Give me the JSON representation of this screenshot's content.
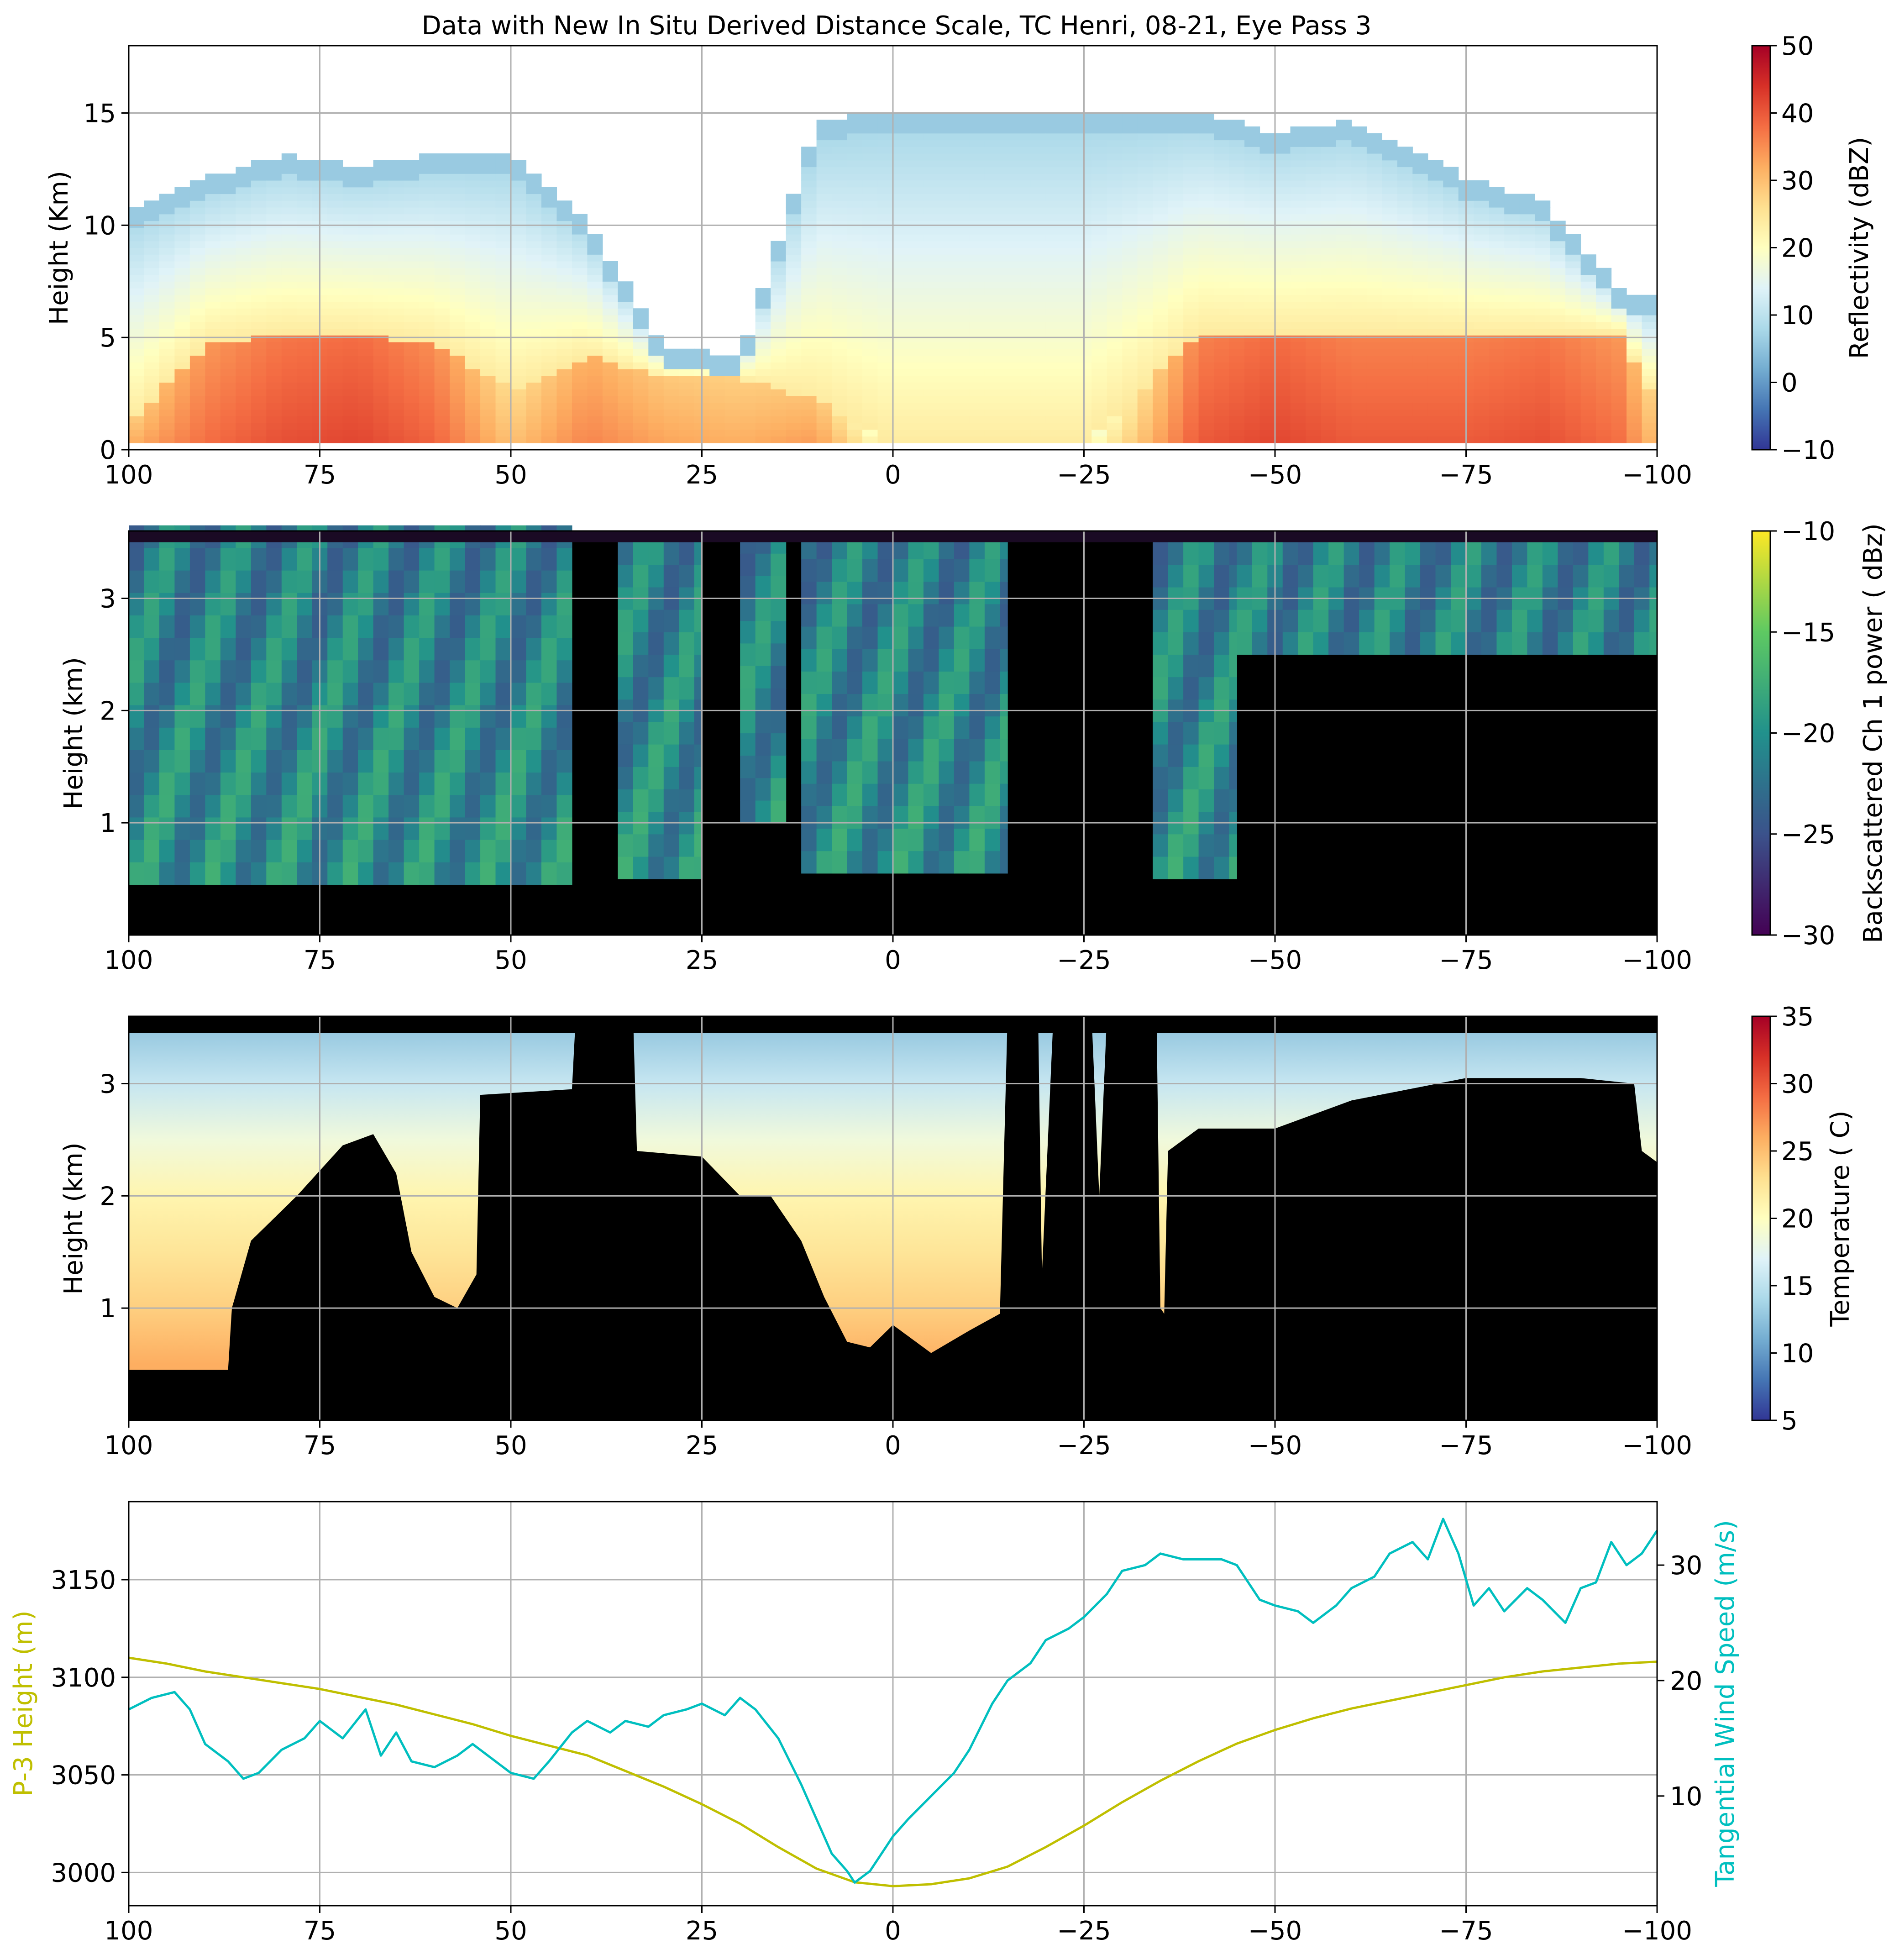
{
  "figure": {
    "title": "Data with New In Situ Derived Distance Scale, TC Henri, 08-21, Eye Pass 3"
  },
  "chart_data": [
    {
      "id": "reflectivity",
      "type": "heatmap",
      "xlim": [
        100,
        -100
      ],
      "xticks": [
        100,
        75,
        50,
        25,
        0,
        -25,
        -50,
        -75,
        -100
      ],
      "xtick_labels": [
        "100",
        "75",
        "50",
        "25",
        "0",
        "−25",
        "−50",
        "−75",
        "−100"
      ],
      "ylim": [
        0,
        18
      ],
      "yticks": [
        0,
        5,
        10,
        15
      ],
      "ytick_labels": [
        "0",
        "5",
        "10",
        "15"
      ],
      "ylabel": "Height (Km)",
      "colorbar": {
        "label": "Reflectivity (dBZ)",
        "range": [
          -10,
          50
        ],
        "ticks": [
          -10,
          0,
          10,
          20,
          30,
          40,
          50
        ],
        "tick_labels": [
          "−10",
          "0",
          "10",
          "20",
          "30",
          "40",
          "50"
        ],
        "colormap": [
          "#313695",
          "#4575b4",
          "#74add1",
          "#abd9e9",
          "#e0f3f8",
          "#ffffbf",
          "#fee090",
          "#fdae61",
          "#f46d43",
          "#d73027",
          "#a50026"
        ]
      },
      "bands": [
        {
          "x": 100,
          "echo_top": 10.5,
          "core_top": 1.0,
          "core_value": 32
        },
        {
          "x": 90,
          "echo_top": 12.0,
          "core_top": 4.5,
          "core_value": 38
        },
        {
          "x": 80,
          "echo_top": 13.0,
          "core_top": 5.0,
          "core_value": 41
        },
        {
          "x": 70,
          "echo_top": 12.5,
          "core_top": 5.0,
          "core_value": 42
        },
        {
          "x": 60,
          "echo_top": 13.0,
          "core_top": 4.5,
          "core_value": 39
        },
        {
          "x": 50,
          "echo_top": 13.0,
          "core_top": 2.5,
          "core_value": 30
        },
        {
          "x": 40,
          "echo_top": 10.0,
          "core_top": 4.0,
          "core_value": 36
        },
        {
          "x": 30,
          "echo_top": 4.5,
          "core_top": 3.0,
          "core_value": 33
        },
        {
          "x": 20,
          "echo_top": 4.0,
          "core_top": 3.0,
          "core_value": 32
        },
        {
          "x": 10,
          "echo_top": 14.5,
          "core_top": 2.0,
          "core_value": 34
        },
        {
          "x": 0,
          "echo_top": 15.0,
          "core_top": 0.0,
          "core_value": 20
        },
        {
          "x": -10,
          "echo_top": 15.0,
          "core_top": 0.0,
          "core_value": 20
        },
        {
          "x": -25,
          "echo_top": 15.0,
          "core_top": 0.0,
          "core_value": 20
        },
        {
          "x": -40,
          "echo_top": 15.0,
          "core_top": 5.0,
          "core_value": 40
        },
        {
          "x": -50,
          "echo_top": 14.0,
          "core_top": 5.0,
          "core_value": 42
        },
        {
          "x": -60,
          "echo_top": 14.5,
          "core_top": 5.0,
          "core_value": 40
        },
        {
          "x": -75,
          "echo_top": 12.0,
          "core_top": 5.0,
          "core_value": 40
        },
        {
          "x": -85,
          "echo_top": 11.0,
          "core_top": 5.0,
          "core_value": 41
        },
        {
          "x": -95,
          "echo_top": 7.0,
          "core_top": 5.0,
          "core_value": 38
        },
        {
          "x": -100,
          "echo_top": 6.5,
          "core_top": 2.0,
          "core_value": 30
        }
      ]
    },
    {
      "id": "backscatter",
      "type": "heatmap",
      "xlim": [
        100,
        -100
      ],
      "xticks": [
        100,
        75,
        50,
        25,
        0,
        -25,
        -50,
        -75,
        -100
      ],
      "xtick_labels": [
        "100",
        "75",
        "50",
        "25",
        "0",
        "−25",
        "−50",
        "−75",
        "−100"
      ],
      "ylim": [
        0,
        3.6
      ],
      "yticks": [
        1,
        2,
        3
      ],
      "ytick_labels": [
        "1",
        "2",
        "3"
      ],
      "ylabel": "Height (km)",
      "colorbar": {
        "label": "Backscattered Ch 1 power ( dBz)",
        "range": [
          -30,
          -10
        ],
        "ticks": [
          -30,
          -25,
          -20,
          -15,
          -10
        ],
        "tick_labels": [
          "−30",
          "−25",
          "−20",
          "−15",
          "−10"
        ],
        "colormap": [
          "#440154",
          "#3b528b",
          "#21918c",
          "#5ec962",
          "#fde725"
        ]
      },
      "surface_height_km": 0.45,
      "clear_columns": [
        {
          "from": 100,
          "to": 42,
          "clear_base": 0.45
        },
        {
          "from": 36,
          "to": 25,
          "clear_base": 0.5
        },
        {
          "from": 20,
          "to": 14,
          "clear_base": 1.0
        },
        {
          "from": 12,
          "to": -15,
          "clear_base": 0.55
        },
        {
          "from": -34,
          "to": -45,
          "clear_base": 0.5
        },
        {
          "from": -45,
          "to": -100,
          "clear_base": 2.5
        }
      ]
    },
    {
      "id": "temperature",
      "type": "heatmap",
      "xlim": [
        100,
        -100
      ],
      "xticks": [
        100,
        75,
        50,
        25,
        0,
        -25,
        -50,
        -75,
        -100
      ],
      "xtick_labels": [
        "100",
        "75",
        "50",
        "25",
        "0",
        "−25",
        "−50",
        "−75",
        "−100"
      ],
      "ylim": [
        0,
        3.6
      ],
      "yticks": [
        1,
        2,
        3
      ],
      "ytick_labels": [
        "1",
        "2",
        "3"
      ],
      "ylabel": "Height (km)",
      "colorbar": {
        "label": "Temperature ( C)",
        "range": [
          5,
          35
        ],
        "ticks": [
          5,
          10,
          15,
          20,
          25,
          30,
          35
        ],
        "tick_labels": [
          "5",
          "10",
          "15",
          "20",
          "25",
          "30",
          "35"
        ],
        "colormap": [
          "#313695",
          "#4575b4",
          "#74add1",
          "#abd9e9",
          "#e0f3f8",
          "#ffffbf",
          "#fee090",
          "#fdae61",
          "#f46d43",
          "#d73027",
          "#a50026"
        ]
      },
      "valid_top_km": 3.45,
      "ground_profile": [
        {
          "x": 100,
          "h": 0.45
        },
        {
          "x": 87,
          "h": 0.45
        },
        {
          "x": 86.5,
          "h": 1.0
        },
        {
          "x": 84,
          "h": 1.6
        },
        {
          "x": 78,
          "h": 2.0
        },
        {
          "x": 72,
          "h": 2.45
        },
        {
          "x": 68,
          "h": 2.55
        },
        {
          "x": 65,
          "h": 2.2
        },
        {
          "x": 63,
          "h": 1.5
        },
        {
          "x": 60,
          "h": 1.1
        },
        {
          "x": 57,
          "h": 1.0
        },
        {
          "x": 54.5,
          "h": 1.3
        },
        {
          "x": 54,
          "h": 2.9
        },
        {
          "x": 42,
          "h": 2.95
        },
        {
          "x": 41.5,
          "h": 3.6
        },
        {
          "x": 34,
          "h": 3.6
        },
        {
          "x": 33.5,
          "h": 2.4
        },
        {
          "x": 25,
          "h": 2.35
        },
        {
          "x": 20,
          "h": 2.0
        },
        {
          "x": 16,
          "h": 2.0
        },
        {
          "x": 12,
          "h": 1.6
        },
        {
          "x": 9,
          "h": 1.1
        },
        {
          "x": 6,
          "h": 0.7
        },
        {
          "x": 3,
          "h": 0.65
        },
        {
          "x": 0,
          "h": 0.85
        },
        {
          "x": -5,
          "h": 0.6
        },
        {
          "x": -10,
          "h": 0.8
        },
        {
          "x": -14,
          "h": 0.95
        },
        {
          "x": -15,
          "h": 3.6
        },
        {
          "x": -19,
          "h": 3.6
        },
        {
          "x": -19.5,
          "h": 1.3
        },
        {
          "x": -21,
          "h": 3.6
        },
        {
          "x": -26,
          "h": 3.6
        },
        {
          "x": -27,
          "h": 2.0
        },
        {
          "x": -28,
          "h": 3.6
        },
        {
          "x": -34.5,
          "h": 3.6
        },
        {
          "x": -35,
          "h": 1.0
        },
        {
          "x": -35.5,
          "h": 0.95
        },
        {
          "x": -36,
          "h": 2.4
        },
        {
          "x": -40,
          "h": 2.6
        },
        {
          "x": -50,
          "h": 2.6
        },
        {
          "x": -60,
          "h": 2.85
        },
        {
          "x": -75,
          "h": 3.05
        },
        {
          "x": -90,
          "h": 3.05
        },
        {
          "x": -97,
          "h": 3.0
        },
        {
          "x": -98,
          "h": 2.4
        },
        {
          "x": -100,
          "h": 2.3
        }
      ],
      "profile": [
        {
          "h": 0.5,
          "t": 26
        },
        {
          "h": 1.0,
          "t": 24
        },
        {
          "h": 1.5,
          "t": 22.5
        },
        {
          "h": 2.0,
          "t": 21
        },
        {
          "h": 2.5,
          "t": 18.5
        },
        {
          "h": 3.0,
          "t": 15.5
        },
        {
          "h": 3.45,
          "t": 13
        }
      ]
    },
    {
      "id": "flight",
      "type": "line",
      "xlim": [
        100,
        -100
      ],
      "xticks": [
        100,
        75,
        50,
        25,
        0,
        -25,
        -50,
        -75,
        -100
      ],
      "xtick_labels": [
        "100",
        "75",
        "50",
        "25",
        "0",
        "−25",
        "−50",
        "−75",
        "−100"
      ],
      "left_axis": {
        "label": "P-3 Height (m)",
        "ylim": [
          2983,
          3190
        ],
        "ticks": [
          3000,
          3050,
          3100,
          3150
        ],
        "tick_labels": [
          "3000",
          "3050",
          "3100",
          "3150"
        ],
        "color": "#bfbf00"
      },
      "right_axis": {
        "label": "Tangential Wind Speed (m/s)",
        "ylim": [
          0.5,
          35.5
        ],
        "ticks": [
          10,
          20,
          30
        ],
        "tick_labels": [
          "10",
          "20",
          "30"
        ],
        "color": "#00bfbf"
      },
      "series": [
        {
          "name": "P-3 Height (m)",
          "axis": "left",
          "color": "#bfbf00",
          "x": [
            100,
            95,
            90,
            85,
            80,
            75,
            70,
            65,
            60,
            55,
            50,
            45,
            40,
            35,
            30,
            25,
            20,
            15,
            10,
            5,
            0,
            -5,
            -10,
            -15,
            -20,
            -25,
            -30,
            -35,
            -40,
            -45,
            -50,
            -55,
            -60,
            -65,
            -70,
            -75,
            -80,
            -85,
            -90,
            -95,
            -100
          ],
          "values": [
            3110,
            3107,
            3103,
            3100,
            3097,
            3094,
            3090,
            3086,
            3081,
            3076,
            3070,
            3065,
            3060,
            3052,
            3044,
            3035,
            3025,
            3013,
            3002,
            2995,
            2993,
            2994,
            2997,
            3003,
            3013,
            3024,
            3036,
            3047,
            3057,
            3066,
            3073,
            3079,
            3084,
            3088,
            3092,
            3096,
            3100,
            3103,
            3105,
            3107,
            3108
          ]
        },
        {
          "name": "Tangential Wind Speed (m/s)",
          "axis": "right",
          "color": "#00bfbf",
          "x": [
            100,
            97,
            94,
            92,
            90,
            87,
            85,
            83,
            80,
            77,
            75,
            72,
            69,
            67,
            65,
            63,
            60,
            57,
            55,
            52,
            50,
            47,
            45,
            42,
            40,
            37,
            35,
            32,
            30,
            27,
            25,
            22,
            20,
            18,
            15,
            12,
            10,
            8,
            6,
            5,
            3,
            1,
            0,
            -2,
            -5,
            -8,
            -10,
            -13,
            -15,
            -18,
            -20,
            -23,
            -25,
            -28,
            -30,
            -33,
            -35,
            -38,
            -40,
            -43,
            -45,
            -48,
            -50,
            -53,
            -55,
            -58,
            -60,
            -63,
            -65,
            -68,
            -70,
            -72,
            -74,
            -76,
            -78,
            -80,
            -83,
            -85,
            -88,
            -90,
            -92,
            -94,
            -96,
            -98,
            -100
          ],
          "values": [
            17.5,
            18.5,
            19,
            17.5,
            14.5,
            13,
            11.5,
            12,
            14,
            15,
            16.5,
            15,
            17.5,
            13.5,
            15.5,
            13,
            12.5,
            13.5,
            14.5,
            13,
            12,
            11.5,
            13,
            15.5,
            16.5,
            15.5,
            16.5,
            16,
            17,
            17.5,
            18,
            17,
            18.5,
            17.5,
            15,
            11,
            8,
            5,
            3.5,
            2.5,
            3.5,
            5.5,
            6.5,
            8,
            10,
            12,
            14,
            18,
            20,
            21.5,
            23.5,
            24.5,
            25.5,
            27.5,
            29.5,
            30,
            31,
            30.5,
            30.5,
            30.5,
            30,
            27,
            26.5,
            26,
            25,
            26.5,
            28,
            29,
            31,
            32,
            30.5,
            34,
            31,
            26.5,
            28,
            26,
            28,
            27,
            25,
            28,
            28.5,
            32,
            30,
            31,
            33
          ]
        }
      ]
    }
  ]
}
